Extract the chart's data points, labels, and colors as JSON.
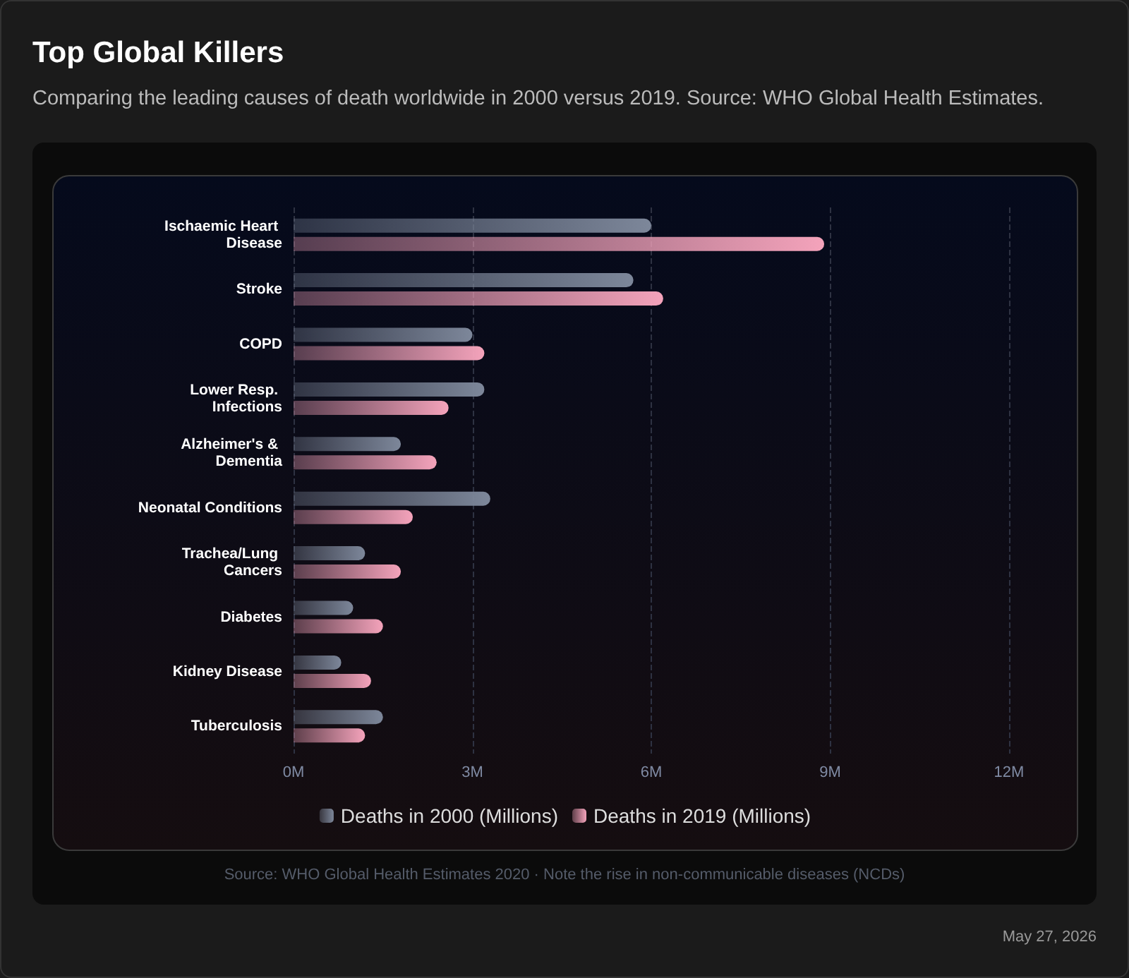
{
  "chart_data": {
    "type": "bar",
    "orientation": "horizontal",
    "title": "Top Global Killers",
    "subtitle": "Comparing the leading causes of death worldwide in 2000 versus 2019. Source: WHO Global Health Estimates.",
    "categories": [
      "Ischaemic Heart Disease",
      "Stroke",
      "COPD",
      "Lower Resp. Infections",
      "Alzheimer's & Dementia",
      "Neonatal Conditions",
      "Trachea/Lung Cancers",
      "Diabetes",
      "Kidney Disease",
      "Tuberculosis"
    ],
    "series": [
      {
        "name": "Deaths in 2000 (Millions)",
        "color": "#7d879a",
        "values": [
          6.0,
          5.7,
          3.0,
          3.2,
          1.8,
          3.3,
          1.2,
          1.0,
          0.8,
          1.5
        ]
      },
      {
        "name": "Deaths in 2019 (Millions)",
        "color": "#f4a3bb",
        "values": [
          8.9,
          6.2,
          3.2,
          2.6,
          2.4,
          2.0,
          1.8,
          1.5,
          1.3,
          1.2
        ]
      }
    ],
    "xlim": [
      0,
      12
    ],
    "xticks": [
      {
        "value": 0,
        "label": "0M"
      },
      {
        "value": 3,
        "label": "3M"
      },
      {
        "value": 6,
        "label": "6M"
      },
      {
        "value": 9,
        "label": "9M"
      },
      {
        "value": 12,
        "label": "12M"
      }
    ],
    "grid": "x",
    "legend": "bottom",
    "annotations": [
      "Source: WHO Global Health Estimates 2020 · Note the rise in non-communicable diseases (NCDs)",
      "May 27, 2026"
    ]
  }
}
